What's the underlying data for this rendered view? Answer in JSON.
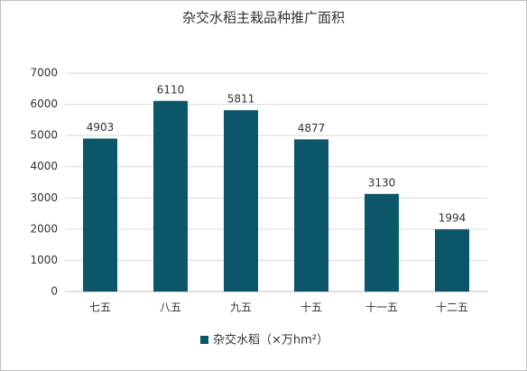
{
  "chart_data": {
    "type": "bar",
    "title": "杂交水稻主栽品种推广面积",
    "categories": [
      "七五",
      "八五",
      "九五",
      "十五",
      "十一五",
      "十二五"
    ],
    "series": [
      {
        "name": "杂交水稻（×万hm²）",
        "color": "#0c5669",
        "values": [
          4903,
          6110,
          5811,
          4877,
          3130,
          1994
        ]
      }
    ],
    "ylim": [
      0,
      7000
    ],
    "yticks": [
      0,
      1000,
      2000,
      3000,
      4000,
      5000,
      6000,
      7000
    ],
    "grid": true,
    "legend": "bottom"
  }
}
